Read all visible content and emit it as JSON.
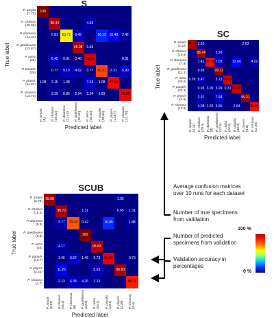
{
  "chart_data": [
    {
      "type": "heatmap",
      "title": "S",
      "xlabel": "Predicted label",
      "ylabel": "True label",
      "rows": [
        "P. ampla",
        "P. chalara",
        "P. diamesa",
        "P. goetheana",
        "P. mitra",
        "P. papalis",
        "P. physis",
        "P. sinuosa"
      ],
      "row_counts": [
        "(7.78)",
        "(29.33)",
        "(11.44)",
        "(22.67)",
        "(28)",
        "(28)",
        "(11.67)",
        "(14.78)"
      ],
      "cols": [
        "P. ampla",
        "P. chalara",
        "P. diamesa",
        "P. goetheana",
        "P. mitra",
        "P. papalis",
        "P. physis",
        "P. sinuosa"
      ],
      "col_counts": [
        "(8)",
        "(29.33)",
        "(11.44)",
        "(20.33)",
        "(28.33)",
        "(28.33)",
        "(11.67)",
        "(14.78)"
      ],
      "values": [
        [
          "100",
          "",
          "",
          "",
          "",
          "",
          "",
          ""
        ],
        [
          "",
          "95.44",
          "",
          "",
          "4.56",
          "",
          "",
          ""
        ],
        [
          "",
          "0.81",
          "63.71",
          "6.45",
          "",
          "16.13",
          "10.48",
          "2.42"
        ],
        [
          "",
          "",
          "",
          "95.08",
          "0.55",
          "",
          "",
          ""
        ],
        [
          "",
          "6.45",
          "0.81",
          "0.40",
          "91.53",
          "",
          "",
          "0.81"
        ],
        [
          "",
          "0.77",
          "5.13",
          "4.62",
          "0.77",
          "80.51",
          "2.31",
          "5.90"
        ],
        [
          "1.08",
          "2.15",
          "1.08",
          "",
          "7.53",
          "1.08",
          "87.10",
          ""
        ],
        [
          "",
          "3.39",
          "0.85",
          "2.54",
          "2.54",
          "1.69",
          "",
          "88.98"
        ]
      ]
    },
    {
      "type": "heatmap",
      "title": "SC",
      "xlabel": "Predicted label",
      "ylabel": "True label",
      "rows": [
        "P. ampla",
        "P. chalara",
        "P. diamesa",
        "P. goetheana",
        "P. mitra",
        "P. papalis",
        "P. physis",
        "P. sinuosa"
      ],
      "row_counts": [
        "(4.22)",
        "(18.4)",
        "(7.9)",
        "(11.2)",
        "(25.6)",
        "(32.4)",
        "(2.8)",
        "(10.9)"
      ],
      "cols": [
        "P. ampla",
        "P. chalara",
        "P. diamesa",
        "P. goetheana",
        "P. mitra",
        "P. papalis",
        "P. physis",
        "P. sinuosa"
      ],
      "col_counts": [
        "(4.11)",
        "(20.3)",
        "(8)",
        "(12.4)",
        "(24.4)",
        "(30.9)",
        "(3.8)",
        "(11.96)"
      ],
      "values": [
        [
          "94.74",
          "2.63",
          "",
          "",
          "",
          "",
          "2.63",
          ""
        ],
        [
          "",
          "96.74",
          "",
          "3.26",
          "",
          "",
          "",
          ""
        ],
        [
          "",
          "1.41",
          "85.79",
          "7.03",
          "",
          "12.66",
          "",
          "4.22"
        ],
        [
          "",
          "0.89",
          "",
          "99.11",
          "",
          "",
          "",
          ""
        ],
        [
          "0.39",
          "5.47",
          "",
          "3.13",
          "91.02",
          "",
          "",
          ""
        ],
        [
          "",
          "0.93",
          "3.09",
          "3.09",
          "0.31",
          "91.98",
          "",
          ""
        ],
        [
          "",
          "3.97",
          "",
          "7.94",
          "",
          "",
          "99.21",
          ""
        ],
        [
          "",
          "4.08",
          "1.02",
          "3.06",
          "",
          "2.04",
          "",
          "86.65"
        ]
      ]
    },
    {
      "type": "heatmap",
      "title": "SCUB",
      "xlabel": "Predicted label",
      "ylabel": "True label",
      "rows": [
        "P. ampla",
        "P. chalara",
        "P. diamesa",
        "P. goetheana",
        "P. mitra",
        "P. papalis",
        "P. physis",
        "P. sinuosa"
      ],
      "row_counts": [
        "(5.78)",
        "(15.3)",
        "(5.9)",
        "(9.8)",
        "(24)",
        "(13.7)",
        "(2.22)",
        "(4.7)"
      ],
      "cols": [
        "P. ampla",
        "P. chalara",
        "P. diamesa",
        "P. goetheana",
        "P. mitra",
        "P. papalis",
        "P. physis",
        "P. sinuosa"
      ],
      "col_counts": [
        "(5.67)",
        "(15.4)",
        "(6)",
        "(10.9)",
        "(24.1)",
        "(13.1)",
        "(2.38)",
        "(4.4)"
      ],
      "values": [
        [
          "98.08",
          "",
          "",
          "",
          "",
          "",
          "1.92",
          ""
        ],
        [
          "",
          "96.73",
          "",
          "1.31",
          "",
          "",
          "0.65",
          "1.31"
        ],
        [
          "",
          "3.77",
          "79.10",
          "0.42",
          "",
          "16.95",
          "",
          "1.88"
        ],
        [
          "",
          "",
          "",
          "100",
          "",
          "",
          "",
          ""
        ],
        [
          "",
          "4.17",
          "",
          "",
          "95.83",
          "",
          "",
          ""
        ],
        [
          "",
          "1.46",
          "6.57",
          "1.46",
          "0.73",
          "89.05",
          "",
          "0.73"
        ],
        [
          "",
          "11.25",
          "",
          "",
          "5.63",
          "",
          "95.63",
          ""
        ],
        [
          "",
          "2.13",
          "6.38",
          "4.26",
          "2.13",
          "",
          "",
          "85.11"
        ]
      ]
    }
  ],
  "legend": {
    "top_label": "100 %",
    "bottom_label": "0 %",
    "colors": [
      "#b00000",
      "#ff2000",
      "#ff8000",
      "#ffff00",
      "#80ff80",
      "#00c0ff",
      "#0040ff",
      "#000080"
    ]
  },
  "annotations": [
    "Average confusion matrices over 10 runs for each dataset",
    "Number of true specimens from validation",
    "Number of predicted specimens from validation",
    "Validation accuracy in percentages"
  ]
}
